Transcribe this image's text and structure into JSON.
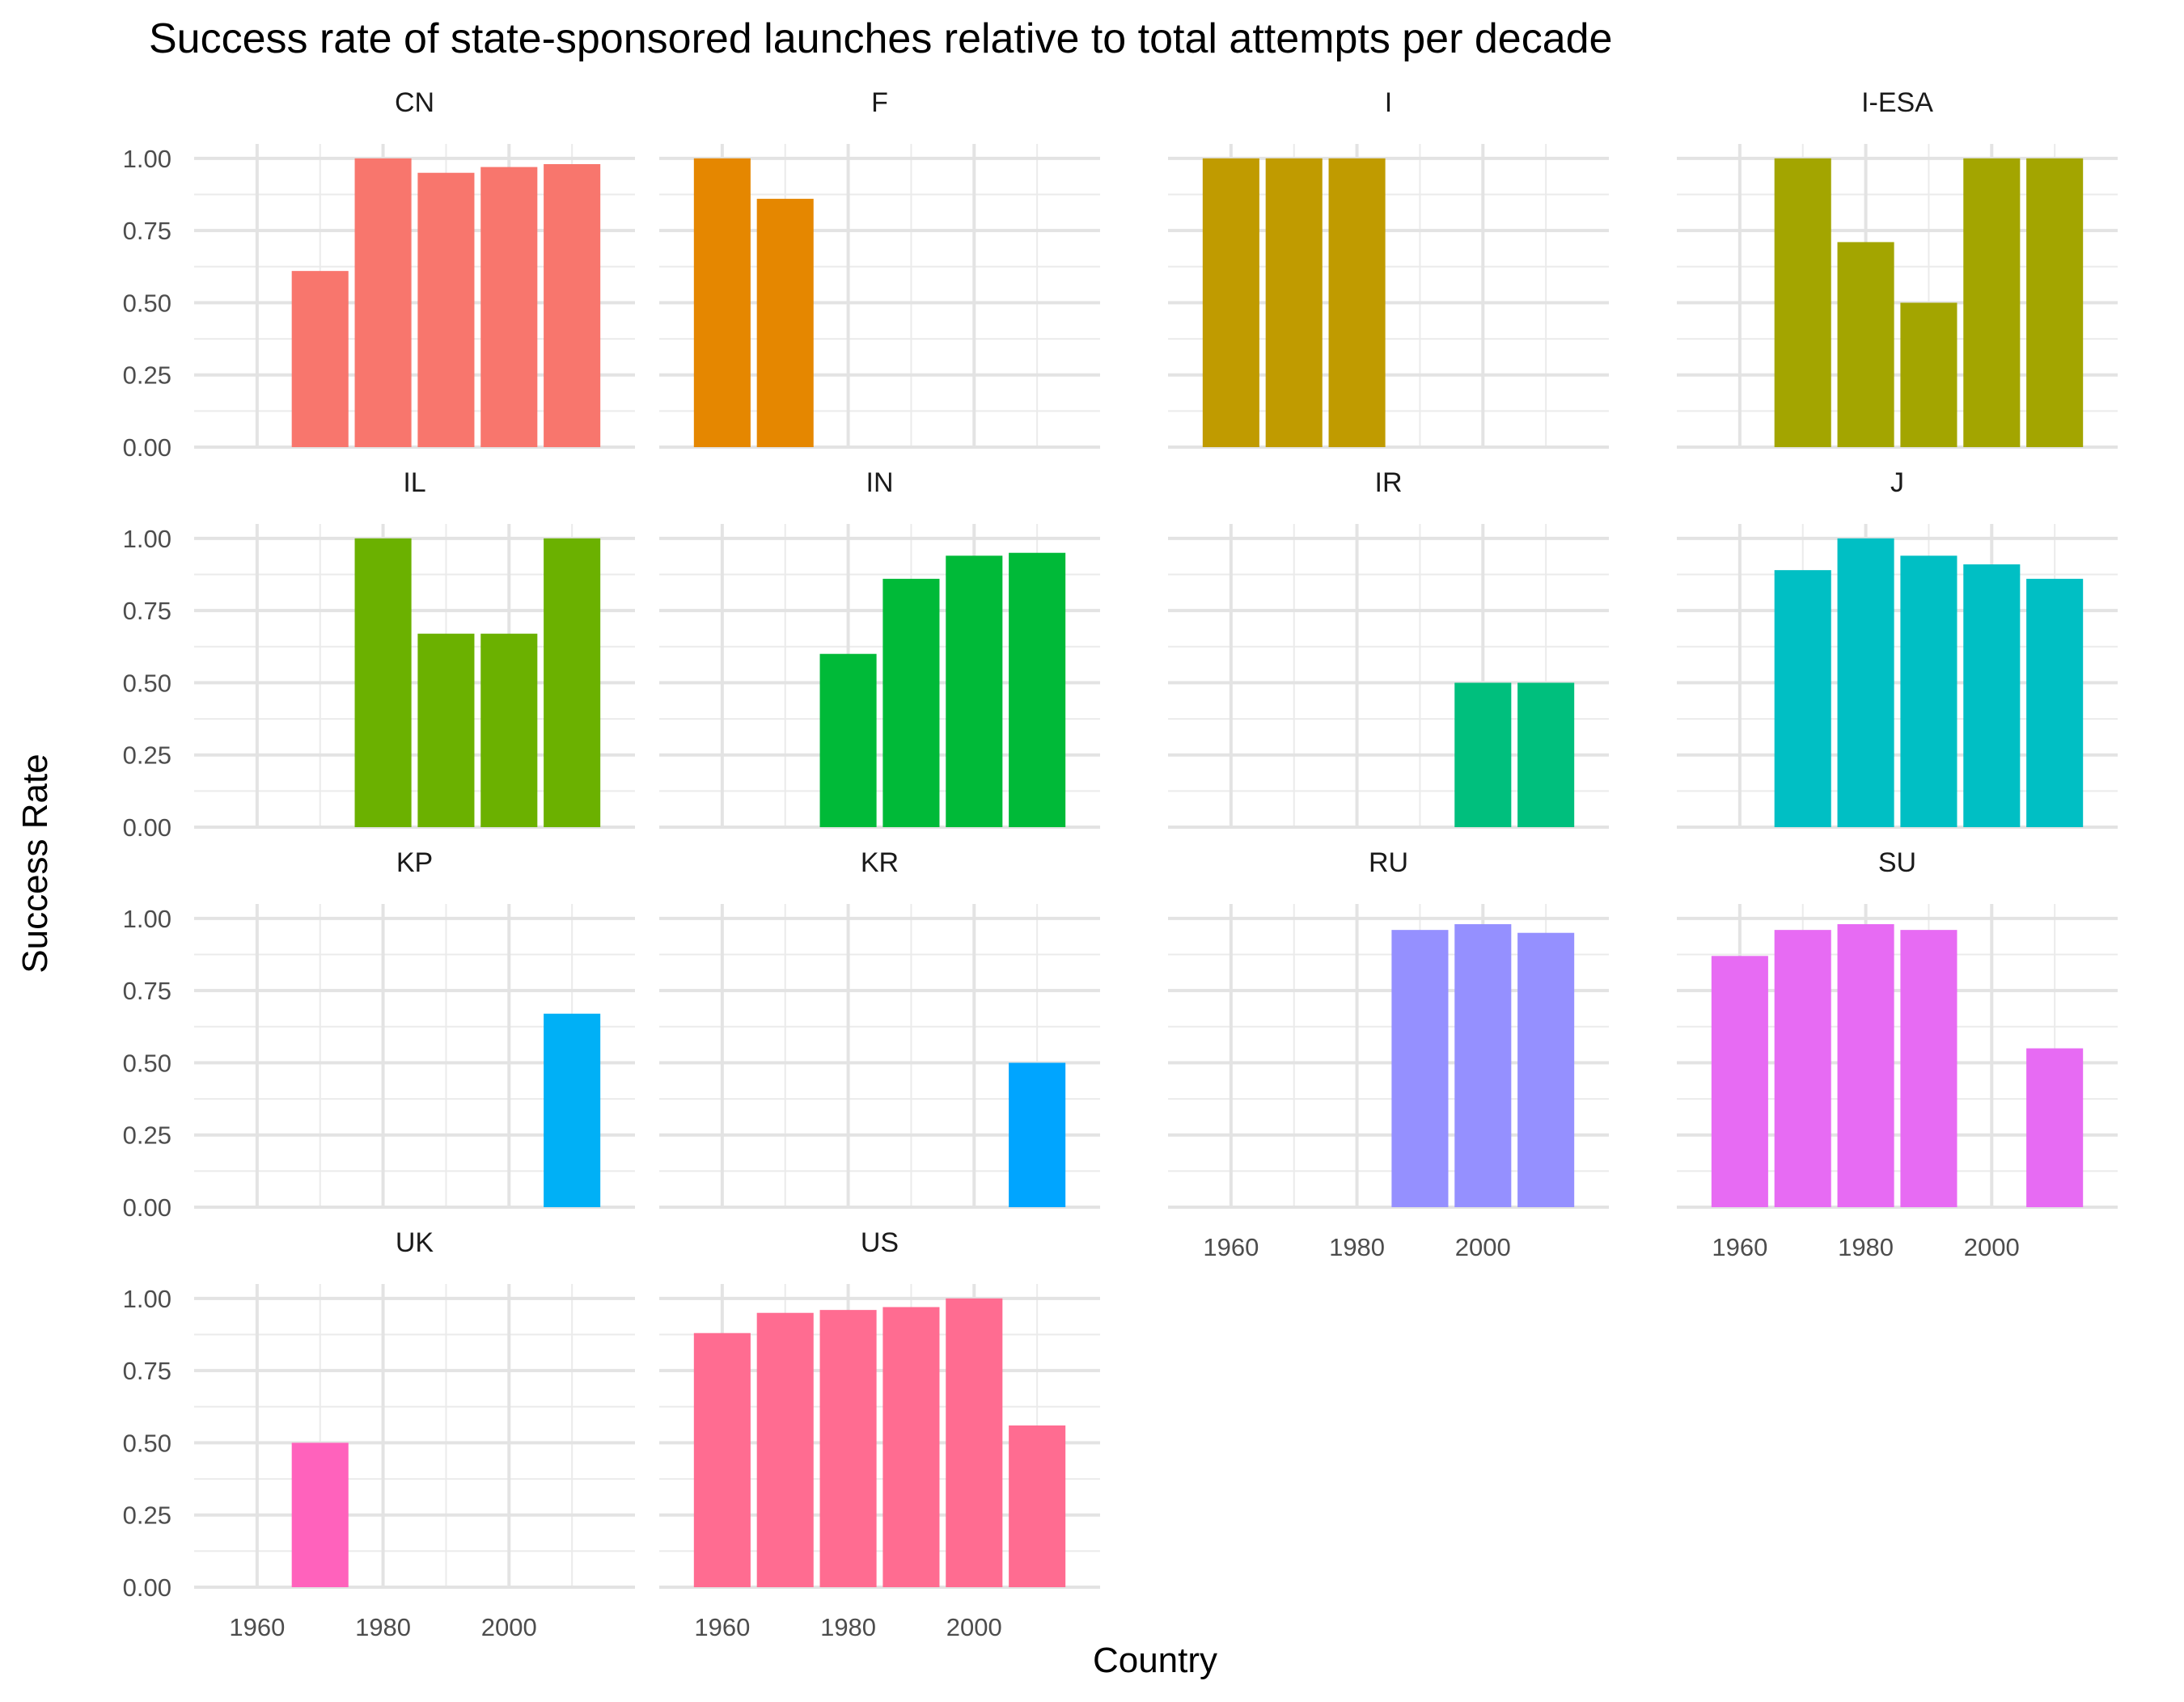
{
  "chart_data": {
    "type": "bar",
    "title": "Success rate of state-sponsored launches relative to total attempts per decade",
    "xlabel": "Country",
    "ylabel": "Success Rate",
    "xlim": [
      1950,
      2020
    ],
    "ylim": [
      0,
      1.05
    ],
    "x_ticks": [
      1960,
      1980,
      2000
    ],
    "y_ticks": [
      0,
      0.25,
      0.5,
      0.75,
      1.0
    ],
    "y_tick_labels": [
      "0.00",
      "0.25",
      "0.50",
      "0.75",
      "1.00"
    ],
    "grid": true,
    "legend": "none",
    "facets": [
      {
        "name": "CN",
        "color": "#F8766D",
        "x": [
          1970,
          1980,
          1990,
          2000,
          2010
        ],
        "values": [
          0.61,
          1.0,
          0.95,
          0.97,
          0.98
        ]
      },
      {
        "name": "F",
        "color": "#E58700",
        "x": [
          1960,
          1970
        ],
        "values": [
          1.0,
          0.86
        ]
      },
      {
        "name": "I",
        "color": "#C09B00",
        "x": [
          1960,
          1970,
          1980
        ],
        "values": [
          1.0,
          1.0,
          1.0
        ]
      },
      {
        "name": "I-ESA",
        "color": "#A3A500",
        "x": [
          1970,
          1980,
          1990,
          2000,
          2010
        ],
        "values": [
          1.0,
          0.71,
          0.5,
          1.0,
          1.0
        ]
      },
      {
        "name": "IL",
        "color": "#6BB100",
        "x": [
          1980,
          1990,
          2000,
          2010
        ],
        "values": [
          1.0,
          0.67,
          0.67,
          1.0
        ]
      },
      {
        "name": "IN",
        "color": "#00BA38",
        "x": [
          1980,
          1990,
          2000,
          2010
        ],
        "values": [
          0.6,
          0.86,
          0.94,
          0.95
        ]
      },
      {
        "name": "IR",
        "color": "#00BF7D",
        "x": [
          2000,
          2010
        ],
        "values": [
          0.5,
          0.5
        ]
      },
      {
        "name": "J",
        "color": "#00BFC4",
        "x": [
          1970,
          1980,
          1990,
          2000,
          2010
        ],
        "values": [
          0.89,
          1.0,
          0.94,
          0.91,
          0.86
        ]
      },
      {
        "name": "KP",
        "color": "#00B0F6",
        "x": [
          2010
        ],
        "values": [
          0.67
        ]
      },
      {
        "name": "KR",
        "color": "#00A5FF",
        "x": [
          2010
        ],
        "values": [
          0.5
        ]
      },
      {
        "name": "RU",
        "color": "#9590FF",
        "x": [
          1990,
          2000,
          2010
        ],
        "values": [
          0.96,
          0.98,
          0.95
        ]
      },
      {
        "name": "SU",
        "color": "#E76BF3",
        "x": [
          1960,
          1970,
          1980,
          1990,
          2010
        ],
        "values": [
          0.87,
          0.96,
          0.98,
          0.96,
          0.55
        ]
      },
      {
        "name": "UK",
        "color": "#FF62BC",
        "x": [
          1970
        ],
        "values": [
          0.5
        ]
      },
      {
        "name": "US",
        "color": "#FF6C91",
        "x": [
          1960,
          1970,
          1980,
          1990,
          2000,
          2010
        ],
        "values": [
          0.88,
          0.95,
          0.96,
          0.97,
          1.0,
          0.56
        ]
      }
    ]
  }
}
